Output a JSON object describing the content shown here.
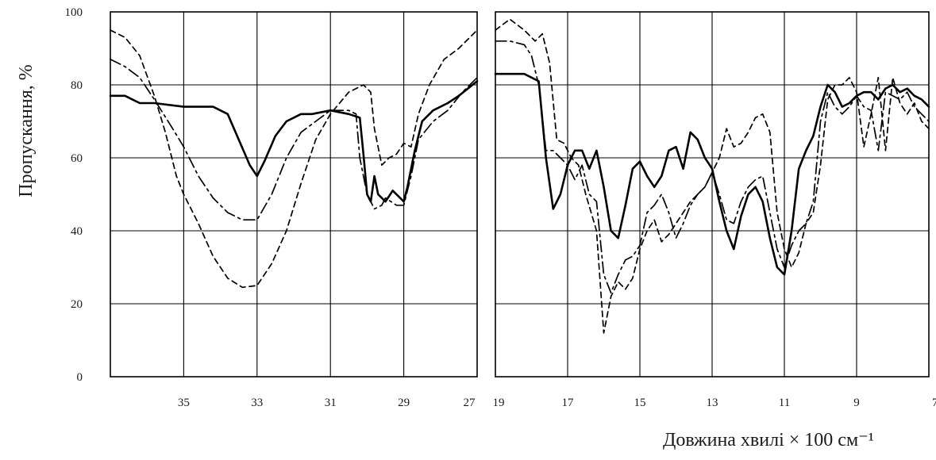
{
  "chart_data": [
    {
      "type": "line",
      "panel": "left",
      "ylabel": "Пропускання, %",
      "xlabel": "",
      "xlim": [
        37,
        27
      ],
      "ylim": [
        0,
        100
      ],
      "x_ticks": [
        35,
        33,
        31,
        29,
        27
      ],
      "y_ticks": [
        0,
        20,
        40,
        60,
        80,
        100
      ],
      "grid": true,
      "series": [
        {
          "style": "solid",
          "points": [
            [
              37,
              77
            ],
            [
              36.6,
              77
            ],
            [
              36.4,
              76
            ],
            [
              36.2,
              75
            ],
            [
              35.8,
              75
            ],
            [
              35,
              74
            ],
            [
              34.2,
              74
            ],
            [
              33.8,
              72
            ],
            [
              33.5,
              65
            ],
            [
              33.2,
              58
            ],
            [
              33,
              55
            ],
            [
              32.8,
              59
            ],
            [
              32.5,
              66
            ],
            [
              32.2,
              70
            ],
            [
              31.8,
              72
            ],
            [
              31.5,
              72
            ],
            [
              31,
              73
            ],
            [
              30.5,
              72
            ],
            [
              30.2,
              71
            ],
            [
              30.1,
              61
            ],
            [
              30,
              50
            ],
            [
              29.9,
              48
            ],
            [
              29.8,
              55
            ],
            [
              29.7,
              50
            ],
            [
              29.5,
              48
            ],
            [
              29.3,
              51
            ],
            [
              29.1,
              49
            ],
            [
              29,
              48
            ],
            [
              28.9,
              52
            ],
            [
              28.7,
              62
            ],
            [
              28.5,
              70
            ],
            [
              28.2,
              73
            ],
            [
              27.8,
              75
            ],
            [
              27.5,
              77
            ],
            [
              27,
              81
            ]
          ]
        },
        {
          "style": "dashdot",
          "points": [
            [
              37,
              87
            ],
            [
              36.6,
              85
            ],
            [
              36.2,
              82
            ],
            [
              35.8,
              76
            ],
            [
              35.3,
              68
            ],
            [
              35,
              63
            ],
            [
              34.6,
              55
            ],
            [
              34.2,
              49
            ],
            [
              33.8,
              45
            ],
            [
              33.4,
              43
            ],
            [
              33,
              43
            ],
            [
              32.6,
              50
            ],
            [
              32.2,
              60
            ],
            [
              31.8,
              67
            ],
            [
              31.4,
              70
            ],
            [
              31,
              73
            ],
            [
              30.5,
              73
            ],
            [
              30.3,
              72
            ],
            [
              30.2,
              60
            ],
            [
              30,
              50
            ],
            [
              29.8,
              46
            ],
            [
              29.6,
              47
            ],
            [
              29.5,
              49
            ],
            [
              29.2,
              47
            ],
            [
              29,
              47
            ],
            [
              28.8,
              55
            ],
            [
              28.6,
              65
            ],
            [
              28.2,
              70
            ],
            [
              27.8,
              73
            ],
            [
              27.4,
              78
            ],
            [
              27,
              82
            ]
          ]
        },
        {
          "style": "dashed",
          "points": [
            [
              37,
              95
            ],
            [
              36.6,
              93
            ],
            [
              36.2,
              88
            ],
            [
              35.8,
              77
            ],
            [
              35.5,
              67
            ],
            [
              35.2,
              55
            ],
            [
              35,
              50
            ],
            [
              34.6,
              42
            ],
            [
              34.2,
              33
            ],
            [
              33.8,
              27
            ],
            [
              33.4,
              24.5
            ],
            [
              33,
              25
            ],
            [
              32.6,
              31
            ],
            [
              32.2,
              40
            ],
            [
              31.8,
              53
            ],
            [
              31.4,
              65
            ],
            [
              31,
              72
            ],
            [
              30.5,
              78
            ],
            [
              30.1,
              80
            ],
            [
              29.9,
              78
            ],
            [
              29.8,
              68
            ],
            [
              29.6,
              58
            ],
            [
              29.4,
              60
            ],
            [
              29.2,
              61
            ],
            [
              29,
              64
            ],
            [
              28.8,
              63
            ],
            [
              28.6,
              72
            ],
            [
              28.3,
              80
            ],
            [
              27.9,
              87
            ],
            [
              27.5,
              90
            ],
            [
              27,
              95
            ]
          ]
        }
      ]
    },
    {
      "type": "line",
      "panel": "right",
      "xlabel": "Довжина хвилі × 100 см⁻¹",
      "ylabel": "",
      "xlim": [
        19,
        7
      ],
      "ylim": [
        0,
        100
      ],
      "x_ticks": [
        19,
        17,
        15,
        13,
        11,
        9,
        7
      ],
      "y_ticks": [
        0,
        20,
        40,
        60,
        80,
        100
      ],
      "grid": true,
      "series": [
        {
          "style": "solid",
          "points": [
            [
              19,
              83
            ],
            [
              18.2,
              83
            ],
            [
              17.8,
              81
            ],
            [
              17.6,
              60
            ],
            [
              17.4,
              46
            ],
            [
              17.2,
              50
            ],
            [
              17,
              58
            ],
            [
              16.8,
              62
            ],
            [
              16.6,
              62
            ],
            [
              16.4,
              57
            ],
            [
              16.2,
              62
            ],
            [
              16,
              52
            ],
            [
              15.8,
              40
            ],
            [
              15.6,
              38
            ],
            [
              15.4,
              47
            ],
            [
              15.2,
              57
            ],
            [
              15,
              59
            ],
            [
              14.8,
              55
            ],
            [
              14.6,
              52
            ],
            [
              14.4,
              55
            ],
            [
              14.2,
              62
            ],
            [
              14,
              63
            ],
            [
              13.8,
              57
            ],
            [
              13.6,
              67
            ],
            [
              13.4,
              65
            ],
            [
              13.2,
              60
            ],
            [
              13,
              57
            ],
            [
              12.8,
              48
            ],
            [
              12.6,
              40
            ],
            [
              12.4,
              35
            ],
            [
              12.2,
              44
            ],
            [
              12,
              50
            ],
            [
              11.8,
              52
            ],
            [
              11.6,
              48
            ],
            [
              11.4,
              38
            ],
            [
              11.2,
              30
            ],
            [
              11,
              28
            ],
            [
              10.8,
              40
            ],
            [
              10.6,
              57
            ],
            [
              10.4,
              62
            ],
            [
              10.2,
              66
            ],
            [
              10,
              74
            ],
            [
              9.8,
              80
            ],
            [
              9.6,
              78
            ],
            [
              9.4,
              74
            ],
            [
              9.2,
              75
            ],
            [
              9,
              77
            ],
            [
              8.8,
              78
            ],
            [
              8.6,
              78
            ],
            [
              8.4,
              76
            ],
            [
              8.2,
              79
            ],
            [
              8,
              80
            ],
            [
              7.8,
              78
            ],
            [
              7.6,
              79
            ],
            [
              7.4,
              77
            ],
            [
              7.2,
              76
            ],
            [
              7,
              74
            ]
          ]
        },
        {
          "style": "dashdot",
          "points": [
            [
              19,
              92
            ],
            [
              18.6,
              92
            ],
            [
              18.2,
              91
            ],
            [
              18,
              88
            ],
            [
              17.8,
              80
            ],
            [
              17.6,
              62
            ],
            [
              17.4,
              62
            ],
            [
              17.2,
              60
            ],
            [
              17,
              58
            ],
            [
              16.8,
              54
            ],
            [
              16.6,
              58
            ],
            [
              16.4,
              50
            ],
            [
              16.2,
              48
            ],
            [
              16,
              28
            ],
            [
              15.8,
              23
            ],
            [
              15.6,
              28
            ],
            [
              15.4,
              32
            ],
            [
              15.2,
              33
            ],
            [
              15,
              36
            ],
            [
              14.8,
              45
            ],
            [
              14.6,
              47
            ],
            [
              14.4,
              50
            ],
            [
              14.2,
              45
            ],
            [
              14,
              38
            ],
            [
              13.8,
              42
            ],
            [
              13.6,
              47
            ],
            [
              13.4,
              50
            ],
            [
              13.2,
              52
            ],
            [
              13,
              56
            ],
            [
              12.8,
              50
            ],
            [
              12.6,
              43
            ],
            [
              12.4,
              42
            ],
            [
              12.2,
              48
            ],
            [
              12,
              52
            ],
            [
              11.8,
              54
            ],
            [
              11.6,
              55
            ],
            [
              11.4,
              45
            ],
            [
              11.2,
              35
            ],
            [
              11,
              30
            ],
            [
              10.8,
              36
            ],
            [
              10.6,
              40
            ],
            [
              10.4,
              42
            ],
            [
              10.2,
              48
            ],
            [
              10,
              70
            ],
            [
              9.8,
              78
            ],
            [
              9.6,
              74
            ],
            [
              9.4,
              72
            ],
            [
              9.2,
              74
            ],
            [
              9,
              77
            ],
            [
              8.8,
              74
            ],
            [
              8.6,
              73
            ],
            [
              8.4,
              62
            ],
            [
              8.2,
              78
            ],
            [
              8,
              77
            ],
            [
              7.8,
              76
            ],
            [
              7.6,
              78
            ],
            [
              7.4,
              74
            ],
            [
              7.2,
              72
            ],
            [
              7,
              70
            ]
          ]
        },
        {
          "style": "dashed",
          "points": [
            [
              19,
              95
            ],
            [
              18.6,
              98
            ],
            [
              18.2,
              95
            ],
            [
              17.9,
              92
            ],
            [
              17.7,
              94
            ],
            [
              17.5,
              86
            ],
            [
              17.3,
              65
            ],
            [
              17.1,
              64
            ],
            [
              16.9,
              60
            ],
            [
              16.7,
              58
            ],
            [
              16.5,
              50
            ],
            [
              16.2,
              40
            ],
            [
              16,
              12
            ],
            [
              15.8,
              22
            ],
            [
              15.6,
              26
            ],
            [
              15.4,
              24
            ],
            [
              15.2,
              27
            ],
            [
              15,
              35
            ],
            [
              14.8,
              40
            ],
            [
              14.6,
              43
            ],
            [
              14.4,
              37
            ],
            [
              14.2,
              39
            ],
            [
              14,
              42
            ],
            [
              13.8,
              45
            ],
            [
              13.6,
              48
            ],
            [
              13.4,
              50
            ],
            [
              13.2,
              52
            ],
            [
              13,
              56
            ],
            [
              12.8,
              60
            ],
            [
              12.6,
              68
            ],
            [
              12.4,
              63
            ],
            [
              12.2,
              64
            ],
            [
              12,
              67
            ],
            [
              11.8,
              71
            ],
            [
              11.6,
              72
            ],
            [
              11.4,
              67
            ],
            [
              11.2,
              45
            ],
            [
              11,
              35
            ],
            [
              10.8,
              30
            ],
            [
              10.6,
              34
            ],
            [
              10.4,
              42
            ],
            [
              10.2,
              45
            ],
            [
              10,
              58
            ],
            [
              9.8,
              76
            ],
            [
              9.6,
              80
            ],
            [
              9.4,
              80
            ],
            [
              9.2,
              82
            ],
            [
              9,
              78
            ],
            [
              8.8,
              63
            ],
            [
              8.6,
              72
            ],
            [
              8.4,
              82
            ],
            [
              8.2,
              62
            ],
            [
              8,
              82
            ],
            [
              7.8,
              75
            ],
            [
              7.6,
              72
            ],
            [
              7.4,
              75
            ],
            [
              7.2,
              70
            ],
            [
              7,
              68
            ]
          ]
        }
      ]
    }
  ]
}
